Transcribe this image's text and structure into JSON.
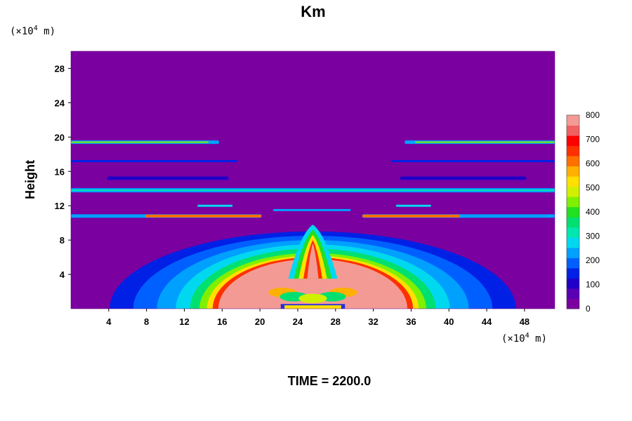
{
  "chart_data": {
    "type": "heatmap",
    "title": "Km",
    "ylabel": "Height",
    "y_units_prefix": "(×10",
    "y_units_exp": "4",
    "y_units_suffix": " m)",
    "x_units_prefix": "(×10",
    "x_units_exp": "4",
    "x_units_suffix": " m)",
    "xlim": [
      0,
      51.2
    ],
    "ylim": [
      0,
      30
    ],
    "x_ticks": [
      "4",
      "8",
      "12",
      "16",
      "20",
      "24",
      "28",
      "32",
      "36",
      "40",
      "44",
      "48"
    ],
    "x_tick_values": [
      4,
      8,
      12,
      16,
      20,
      24,
      28,
      32,
      36,
      40,
      44,
      48
    ],
    "y_ticks": [
      "4",
      "8",
      "12",
      "16",
      "20",
      "24",
      "28"
    ],
    "y_tick_values": [
      4,
      8,
      12,
      16,
      20,
      24,
      28
    ],
    "colorbar": {
      "ticks": [
        "0",
        "100",
        "200",
        "300",
        "400",
        "500",
        "600",
        "700",
        "800"
      ],
      "values": [
        0,
        100,
        200,
        300,
        400,
        500,
        600,
        700,
        800
      ],
      "colors": [
        "#7a00a0",
        "#5a00b4",
        "#2000c8",
        "#0020e6",
        "#0060ff",
        "#00a0ff",
        "#00d8f0",
        "#00e8b0",
        "#00e070",
        "#20e020",
        "#80f000",
        "#d0f000",
        "#ffe000",
        "#ffb000",
        "#ff7000",
        "#ff3000",
        "#ff0000",
        "#f06060",
        "#f49a94"
      ]
    },
    "background_color": "#7a00a0",
    "grid": false
  },
  "footer": {
    "time_label": "TIME = 2200.0"
  }
}
